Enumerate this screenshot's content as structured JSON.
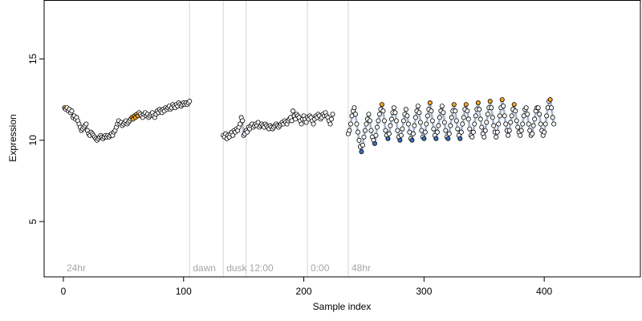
{
  "chart_data": {
    "type": "scatter",
    "title": "",
    "xlabel": "Sample index",
    "ylabel": "Expression",
    "xlim": [
      -16,
      480
    ],
    "ylim": [
      1.6,
      18.6
    ],
    "x_ticks": [
      0,
      100,
      200,
      300,
      400
    ],
    "y_ticks": [
      5,
      10,
      15
    ],
    "grid": false,
    "annotations": [
      {
        "label": "24hr",
        "x": 0
      },
      {
        "label": "dawn",
        "x": 105
      },
      {
        "label": "dusk",
        "x": 133
      },
      {
        "label": "12:00",
        "x": 152
      },
      {
        "label": "0:00",
        "x": 203
      },
      {
        "label": "48hr",
        "x": 237
      }
    ],
    "vertical_lines": [
      105,
      133,
      152,
      203,
      237
    ],
    "colors": {
      "open_point": "#ffffff",
      "orange_point": "#f5a623",
      "blue_point": "#3a6fc4",
      "trace_blue": "#9fb6d9",
      "trace_orange": "#f2b866",
      "trace_gray": "#9a9a9a",
      "divider": "#d3d3d3",
      "annotation": "#a6a6a6"
    },
    "series": [
      {
        "segment": "phase-1",
        "x_start": 1,
        "y": [
          12.0,
          11.9,
          12.0,
          11.8,
          11.9,
          11.7,
          11.8,
          11.4,
          11.5,
          11.3,
          11.4,
          11.2,
          11.0,
          10.8,
          10.6,
          10.7,
          10.8,
          10.9,
          11.0,
          10.6,
          10.4,
          10.3,
          10.5,
          10.4,
          10.3,
          10.2,
          10.1,
          10.0,
          10.1,
          10.2,
          10.3,
          10.2,
          10.1,
          10.2,
          10.3,
          10.2,
          10.3,
          10.2,
          10.3,
          10.4,
          10.3,
          10.5,
          10.6,
          10.8,
          11.0,
          11.2,
          11.0,
          11.1,
          10.9,
          11.0,
          11.1,
          11.2,
          11.0,
          11.1,
          11.2,
          11.3,
          11.4,
          11.3,
          11.5,
          11.4,
          11.6,
          11.5,
          11.7,
          11.6,
          11.5,
          11.4,
          11.6,
          11.7,
          11.5,
          11.6,
          11.4,
          11.5,
          11.6,
          11.7,
          11.5,
          11.4,
          11.6,
          11.8,
          11.7,
          11.9,
          11.8,
          11.7,
          11.9,
          11.8,
          12.0,
          11.9,
          12.0,
          12.1,
          11.9,
          12.0,
          12.2,
          12.1,
          12.0,
          12.2,
          12.1,
          12.3,
          12.2,
          12.1,
          12.2,
          12.3,
          12.2,
          12.3,
          12.2,
          12.3,
          12.4
        ]
      },
      {
        "segment": "phase-2",
        "x_start": 133,
        "y": [
          10.3,
          10.2,
          10.4,
          10.1,
          10.3,
          10.2,
          10.4,
          10.5,
          10.3,
          10.6,
          10.5,
          10.7,
          10.6,
          10.8,
          11.0,
          11.4,
          11.2,
          10.3,
          10.4,
          10.6,
          10.5,
          10.8,
          10.7,
          10.9,
          11.0,
          10.8,
          10.9,
          11.0,
          10.9,
          11.1,
          10.8,
          10.9,
          11.0,
          10.9,
          10.8,
          11.0,
          10.9,
          10.8,
          10.7,
          10.9,
          10.8,
          10.7,
          10.8,
          10.9,
          11.0,
          10.9,
          10.8,
          10.9,
          11.0,
          11.1,
          11.0,
          11.2,
          11.1,
          11.0,
          11.2,
          11.3,
          11.4,
          11.2,
          11.8,
          11.5,
          11.3,
          11.6,
          11.5,
          11.4,
          11.2,
          11.0,
          11.3,
          11.5,
          11.3,
          11.1,
          11.4,
          11.3,
          11.5,
          11.4,
          11.2,
          11.0,
          11.3,
          11.5,
          11.4,
          11.6,
          11.5,
          11.3,
          11.4,
          11.6,
          11.5,
          11.7,
          11.5,
          11.4,
          11.2,
          11.0,
          11.3,
          11.6
        ]
      },
      {
        "segment": "phase-3",
        "x_start": 237,
        "y": [
          10.4,
          10.6,
          11.0,
          11.5,
          11.8,
          12.0,
          11.6,
          11.0,
          10.5,
          10.0,
          9.6,
          9.3,
          9.7,
          10.2,
          10.6,
          11.0,
          11.3,
          11.6,
          11.2,
          10.6,
          10.2,
          10.0,
          9.8,
          10.3,
          10.8,
          11.2,
          11.6,
          11.9,
          12.2,
          11.8,
          11.2,
          10.6,
          10.3,
          10.1,
          10.4,
          10.9,
          11.3,
          11.7,
          12.0,
          11.7,
          11.2,
          10.6,
          10.2,
          10.0,
          10.3,
          10.7,
          11.2,
          11.6,
          11.9,
          11.5,
          11.0,
          10.5,
          10.1,
          10.0,
          10.4,
          10.9,
          11.4,
          11.8,
          12.1,
          11.7,
          11.1,
          10.6,
          10.2,
          10.1,
          10.5,
          11.0,
          11.5,
          11.9,
          12.3,
          11.8,
          11.2,
          10.7,
          10.3,
          10.1,
          10.5,
          10.9,
          11.4,
          11.8,
          12.1,
          11.7,
          11.1,
          10.6,
          10.2,
          10.1,
          10.4,
          10.9,
          11.4,
          11.8,
          12.2,
          11.8,
          11.2,
          10.7,
          10.3,
          10.1,
          10.5,
          11.0,
          11.4,
          11.9,
          12.2,
          11.8,
          11.3,
          10.7,
          10.3,
          10.2,
          10.5,
          11.0,
          11.5,
          11.9,
          12.3,
          11.9,
          11.3,
          10.8,
          10.4,
          10.2,
          10.6,
          11.1,
          11.6,
          12.0,
          12.4,
          12.0,
          11.4,
          10.9,
          10.5,
          10.2,
          10.5,
          11.0,
          11.5,
          12.0,
          12.5,
          12.1,
          11.5,
          11.0,
          10.6,
          10.3,
          10.6,
          11.1,
          11.5,
          11.9,
          12.2,
          11.8,
          11.2,
          10.8,
          10.5,
          10.3,
          10.6,
          11.0,
          11.5,
          11.9,
          12.0,
          11.6,
          11.0,
          10.6,
          10.3,
          10.4,
          10.9,
          11.3,
          11.8,
          12.0,
          12.0,
          11.6,
          11.0,
          10.6,
          10.3,
          10.5,
          11.0,
          11.5,
          12.0,
          12.4,
          12.5,
          12.0,
          11.4,
          11.0
        ]
      }
    ]
  }
}
